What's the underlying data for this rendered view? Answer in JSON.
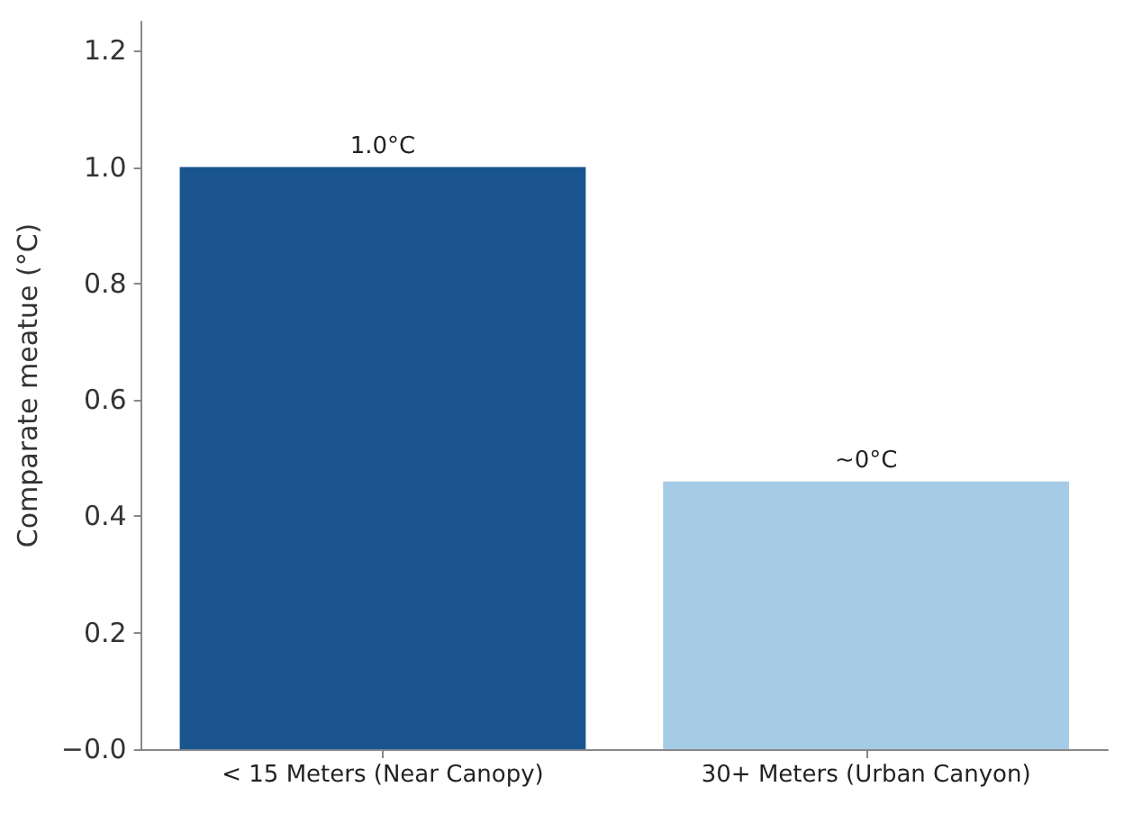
{
  "chart_data": {
    "type": "bar",
    "ylabel": "Comparate meatue (°C)",
    "categories": [
      "< 15 Meters (Near Canopy)",
      "30+ Meters (Urban Canyon)"
    ],
    "values": [
      1.0,
      0.46
    ],
    "colors": [
      "#1a5590",
      "#a6cbe6"
    ],
    "value_labels": [
      "1.0°C",
      "~0°C"
    ],
    "ylim": [
      0,
      1.25
    ],
    "yticks": [
      {
        "value": 0,
        "label": "−0.0"
      },
      0.2,
      0.4,
      0.6,
      0.8,
      {
        "value": 1,
        "label": "1.0"
      },
      1.2
    ],
    "grid": false
  }
}
